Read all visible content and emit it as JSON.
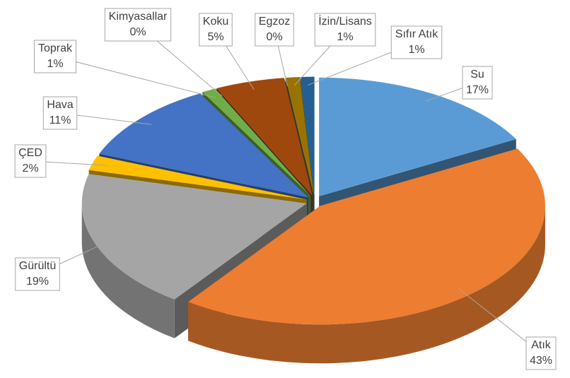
{
  "chart_data": {
    "type": "pie3d",
    "categories": [
      "Su",
      "Atık",
      "Gürültü",
      "ÇED",
      "Hava",
      "Toprak",
      "Kimyasallar",
      "Koku",
      "Egzoz",
      "İzin/Lisans",
      "Sıfır Atık"
    ],
    "values": [
      17,
      43,
      19,
      2,
      11,
      1,
      0,
      5,
      0,
      1,
      1
    ],
    "value_labels": [
      "17%",
      "43%",
      "19%",
      "2%",
      "11%",
      "1%",
      "0%",
      "5%",
      "0%",
      "1%",
      "1%"
    ],
    "colors": [
      "#5b9bd5",
      "#ed7d31",
      "#a5a5a5",
      "#ffc000",
      "#4472c4",
      "#70ad47",
      "#264478",
      "#9e480e",
      "#636363",
      "#997300",
      "#255e91"
    ]
  }
}
